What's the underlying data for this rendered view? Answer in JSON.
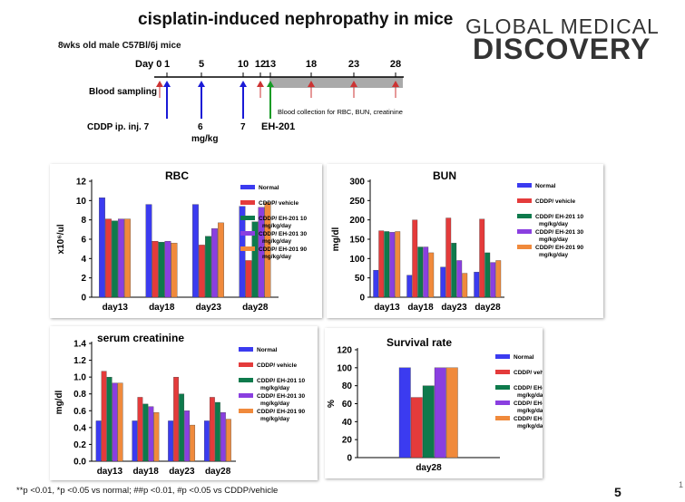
{
  "slide": {
    "title": "cisplatin-induced nephropathy in mice",
    "logo_line1": "GLOBAL MEDICAL",
    "logo_line2": "DISCOVERY",
    "page_number": "5",
    "edge_mark": "1",
    "footnote": "**p <0.01, *p <0.05 vs normal; ##p <0.01, #p <0.05 vs CDDP/vehicle"
  },
  "timeline": {
    "mice": "8wks old male C57Bl/6j mice",
    "day_label": "Day 0",
    "days": [
      "1",
      "5",
      "10",
      "12",
      "13",
      "18",
      "23",
      "28"
    ],
    "blood_sampling": "Blood sampling",
    "cddp": "CDDP ip. inj. 7",
    "dose_6": "6",
    "dose_unit": "mg/kg",
    "dose_7": "7",
    "eh": "EH-201",
    "collection": "Blood collection for RBC, BUN, creatinine",
    "colors": {
      "red": "#cc3333",
      "blue": "#1a1ad6",
      "green": "#159b25",
      "gray": "#aaaaaa"
    }
  },
  "colors": {
    "normal": "#3b3bf0",
    "vehicle": "#e43b3b",
    "eh10": "#0e7a4c",
    "eh30": "#8a3fe0",
    "eh90": "#f08a3c"
  },
  "legend": [
    [
      "Normal"
    ],
    [
      "CDDP/ vehicle"
    ],
    [
      "CDDP/ EH-201 10",
      "mg/kg/day"
    ],
    [
      "CDDP/ EH-201 30",
      "mg/kg/day"
    ],
    [
      "CDDP/ EH-201 90",
      "mg/kg/day"
    ]
  ],
  "chart_data": [
    {
      "type": "bar",
      "title": "RBC",
      "ylabel": "x10⁶/ul",
      "ylim": [
        0,
        12
      ],
      "yticks": [
        0,
        2,
        4,
        6,
        8,
        10,
        12
      ],
      "categories": [
        "day13",
        "day18",
        "day23",
        "day28"
      ],
      "series": [
        {
          "name": "Normal",
          "values": [
            10.3,
            9.6,
            9.6,
            9.4
          ]
        },
        {
          "name": "CDDP/ vehicle",
          "values": [
            8.1,
            5.8,
            5.4,
            3.8
          ]
        },
        {
          "name": "CDDP/ EH-201 10 mg/kg/day",
          "values": [
            7.9,
            5.7,
            6.3,
            7.8
          ]
        },
        {
          "name": "CDDP/ EH-201 30 mg/kg/day",
          "values": [
            8.1,
            5.8,
            7.1,
            9.3
          ]
        },
        {
          "name": "CDDP/ EH-201 90 mg/kg/day",
          "values": [
            8.1,
            5.6,
            7.7,
            9.8
          ]
        }
      ]
    },
    {
      "type": "bar",
      "title": "BUN",
      "ylabel": "mg/dl",
      "ylim": [
        0,
        300
      ],
      "yticks": [
        0,
        50,
        100,
        150,
        200,
        250,
        300
      ],
      "categories": [
        "day13",
        "day18",
        "day23",
        "day28"
      ],
      "series": [
        {
          "name": "Normal",
          "values": [
            70,
            57,
            78,
            65
          ]
        },
        {
          "name": "CDDP/ vehicle",
          "values": [
            172,
            200,
            205,
            202
          ]
        },
        {
          "name": "CDDP/ EH-201 10 mg/kg/day",
          "values": [
            170,
            130,
            140,
            115
          ]
        },
        {
          "name": "CDDP/ EH-201 30 mg/kg/day",
          "values": [
            168,
            130,
            95,
            90
          ]
        },
        {
          "name": "CDDP/ EH-201 90 mg/kg/day",
          "values": [
            170,
            115,
            62,
            95
          ]
        }
      ]
    },
    {
      "type": "bar",
      "title": "serum creatinine",
      "ylabel": "mg/dl",
      "ylim": [
        0,
        1.4
      ],
      "yticks": [
        0.0,
        0.2,
        0.4,
        0.6,
        0.8,
        1.0,
        1.2,
        1.4
      ],
      "categories": [
        "day13",
        "day18",
        "day23",
        "day28"
      ],
      "series": [
        {
          "name": "Normal",
          "values": [
            0.48,
            0.48,
            0.48,
            0.48
          ]
        },
        {
          "name": "CDDP/ vehicle",
          "values": [
            1.07,
            0.76,
            1.0,
            0.76
          ]
        },
        {
          "name": "CDDP/ EH-201 10 mg/kg/day",
          "values": [
            1.0,
            0.68,
            0.8,
            0.7
          ]
        },
        {
          "name": "CDDP/ EH-201 30 mg/kg/day",
          "values": [
            0.93,
            0.65,
            0.6,
            0.58
          ]
        },
        {
          "name": "CDDP/ EH-201 90 mg/kg/day",
          "values": [
            0.93,
            0.58,
            0.43,
            0.5
          ]
        }
      ]
    },
    {
      "type": "bar",
      "title": "Survival rate",
      "ylabel": "%",
      "ylim": [
        0,
        120
      ],
      "yticks": [
        0,
        20,
        40,
        60,
        80,
        100,
        120
      ],
      "categories": [
        "day28"
      ],
      "series": [
        {
          "name": "Normal",
          "values": [
            100
          ]
        },
        {
          "name": "CDDP/ vehicle",
          "values": [
            67
          ]
        },
        {
          "name": "CDDP/ EH-201 10 mg/kg/day",
          "values": [
            80
          ]
        },
        {
          "name": "CDDP/ EH-201 30 mg/kg/day",
          "values": [
            100
          ]
        },
        {
          "name": "CDDP/ EH-201 90 mg/kg/day",
          "values": [
            100
          ]
        }
      ]
    }
  ]
}
